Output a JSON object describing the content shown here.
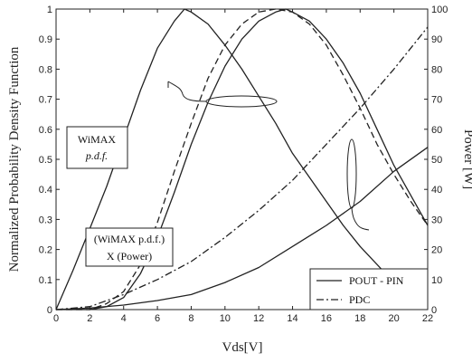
{
  "chart_data": {
    "type": "line",
    "xlabel": "Vds[V]",
    "ylabel_left": "Normalized Probability Density Function",
    "ylabel_right": "Power [W]",
    "xlim": [
      0,
      22
    ],
    "ylim_left": [
      0,
      1
    ],
    "ylim_right": [
      0,
      100
    ],
    "x_ticks": [
      "0",
      "2",
      "4",
      "6",
      "8",
      "10",
      "12",
      "14",
      "16",
      "18",
      "20",
      "22"
    ],
    "y_ticks_left": [
      "0",
      "0.1",
      "0.2",
      "0.3",
      "0.4",
      "0.5",
      "0.6",
      "0.7",
      "0.8",
      "0.9",
      "1"
    ],
    "y_ticks_right": [
      "0",
      "10",
      "20",
      "30",
      "40",
      "50",
      "60",
      "70",
      "80",
      "90",
      "100"
    ],
    "grid": false,
    "legend_position": "bottom-right",
    "annotations": {
      "wimax_pdf": [
        "WiMAX",
        "p.d.f."
      ],
      "product": [
        "(WiMAX p.d.f.)",
        "X (Power)"
      ]
    },
    "legend": [
      {
        "label": "POUT - PIN",
        "style": "solid"
      },
      {
        "label": "PDC",
        "style": "dashdot"
      }
    ],
    "series": [
      {
        "axis": "left",
        "style": "solid",
        "x": [
          0,
          1,
          2,
          3,
          4,
          5,
          6,
          7,
          7.6,
          8,
          9,
          10,
          11,
          12,
          13,
          14,
          15,
          16,
          17,
          18,
          19,
          20,
          21,
          22
        ],
        "y": [
          0,
          0.13,
          0.27,
          0.41,
          0.57,
          0.73,
          0.87,
          0.96,
          1.0,
          0.99,
          0.95,
          0.88,
          0.8,
          0.71,
          0.62,
          0.52,
          0.44,
          0.36,
          0.28,
          0.21,
          0.15,
          0.09,
          0.04,
          0.0
        ]
      },
      {
        "axis": "left",
        "style": "solid",
        "x": [
          0,
          2,
          3,
          4,
          5,
          6,
          7,
          8,
          9,
          10,
          11,
          12,
          13,
          13.6,
          14,
          15,
          16,
          17,
          18,
          19,
          20,
          21,
          22
        ],
        "y": [
          0,
          0.0,
          0.01,
          0.04,
          0.12,
          0.24,
          0.39,
          0.55,
          0.69,
          0.81,
          0.9,
          0.96,
          0.99,
          1.0,
          0.99,
          0.96,
          0.9,
          0.82,
          0.72,
          0.6,
          0.48,
          0.38,
          0.28
        ]
      },
      {
        "axis": "left",
        "style": "dashed",
        "x": [
          0,
          2,
          3,
          4,
          5,
          6,
          7,
          8,
          9,
          10,
          11,
          12,
          13,
          14,
          15,
          16,
          17,
          18,
          19,
          20,
          21,
          22
        ],
        "y": [
          0,
          0.0,
          0.02,
          0.06,
          0.15,
          0.29,
          0.46,
          0.62,
          0.77,
          0.88,
          0.95,
          0.99,
          1.0,
          0.99,
          0.95,
          0.88,
          0.78,
          0.67,
          0.55,
          0.45,
          0.36,
          0.28
        ]
      },
      {
        "axis": "right",
        "style": "solid",
        "x": [
          0,
          2,
          4,
          6,
          8,
          10,
          12,
          14,
          16,
          18,
          20,
          22
        ],
        "y": [
          0,
          0.5,
          1.5,
          3,
          5,
          9,
          14,
          21,
          28,
          36,
          46,
          54
        ]
      },
      {
        "axis": "right",
        "style": "dashdot",
        "x": [
          0,
          2,
          4,
          6,
          8,
          10,
          12,
          14,
          16,
          18,
          20,
          22
        ],
        "y": [
          0,
          1,
          5,
          10,
          16,
          24,
          33,
          43,
          55,
          67,
          80,
          94
        ]
      }
    ]
  }
}
